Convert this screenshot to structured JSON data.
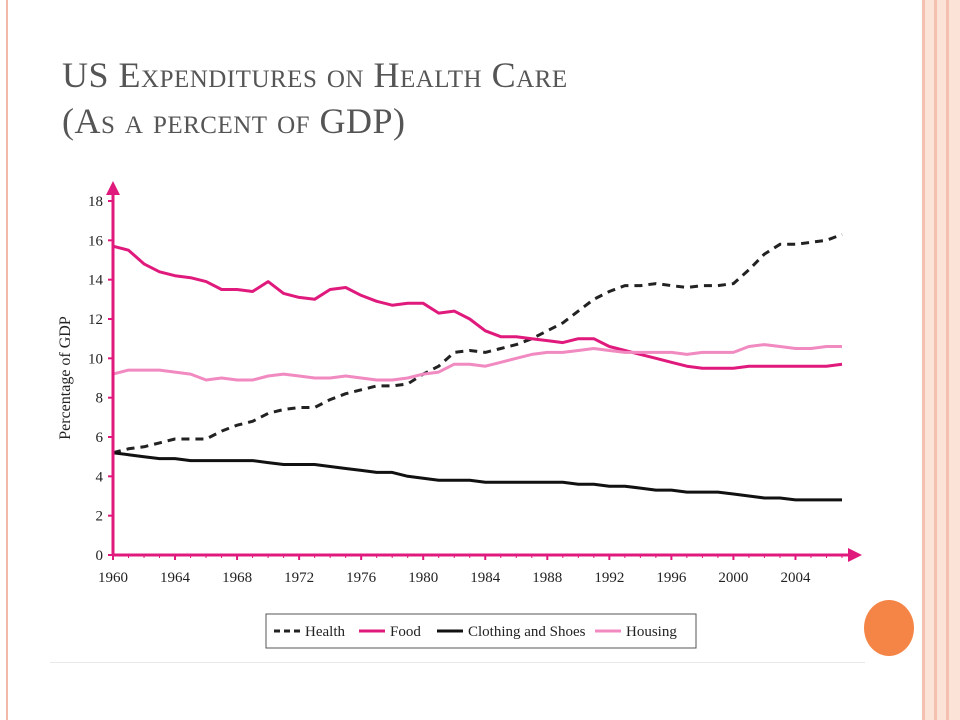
{
  "slide": {
    "title_line1": "US Expenditures on Health Care",
    "title_line2": "(As a percent of GDP)"
  },
  "colors": {
    "axis": "#e0197d",
    "health": "#222222",
    "food": "#e0197d",
    "clothing": "#111111",
    "housing": "#f08ac0",
    "title": "#555555",
    "accent_dot": "#f58546"
  },
  "chart_data": {
    "type": "line",
    "title": "",
    "xlabel": "",
    "ylabel": "Percentage of GDP",
    "xlim": [
      1960,
      2007
    ],
    "ylim": [
      0,
      18
    ],
    "xticks": [
      "1960",
      "1964",
      "1968",
      "1972",
      "1976",
      "1980",
      "1984",
      "1988",
      "1992",
      "1996",
      "2000",
      "2004"
    ],
    "yticks": [
      "0",
      "2",
      "4",
      "6",
      "8",
      "10",
      "12",
      "14",
      "16",
      "18"
    ],
    "legend_position": "bottom",
    "x": [
      1960,
      1961,
      1962,
      1963,
      1964,
      1965,
      1966,
      1967,
      1968,
      1969,
      1970,
      1971,
      1972,
      1973,
      1974,
      1975,
      1976,
      1977,
      1978,
      1979,
      1980,
      1981,
      1982,
      1983,
      1984,
      1985,
      1986,
      1987,
      1988,
      1989,
      1990,
      1991,
      1992,
      1993,
      1994,
      1995,
      1996,
      1997,
      1998,
      1999,
      2000,
      2001,
      2002,
      2003,
      2004,
      2005,
      2006,
      2007
    ],
    "series": [
      {
        "name": "Health",
        "style": "dashed",
        "values": [
          5.2,
          5.4,
          5.5,
          5.7,
          5.9,
          5.9,
          5.9,
          6.3,
          6.6,
          6.8,
          7.2,
          7.4,
          7.5,
          7.5,
          7.9,
          8.2,
          8.4,
          8.6,
          8.6,
          8.7,
          9.2,
          9.6,
          10.3,
          10.4,
          10.3,
          10.5,
          10.7,
          11.0,
          11.4,
          11.8,
          12.4,
          13.0,
          13.4,
          13.7,
          13.7,
          13.8,
          13.7,
          13.6,
          13.7,
          13.7,
          13.8,
          14.5,
          15.3,
          15.8,
          15.8,
          15.9,
          16.0,
          16.3
        ]
      },
      {
        "name": "Food",
        "style": "solid",
        "values": [
          15.7,
          15.5,
          14.8,
          14.4,
          14.2,
          14.1,
          13.9,
          13.5,
          13.5,
          13.4,
          13.9,
          13.3,
          13.1,
          13.0,
          13.5,
          13.6,
          13.2,
          12.9,
          12.7,
          12.8,
          12.8,
          12.3,
          12.4,
          12.0,
          11.4,
          11.1,
          11.1,
          11.0,
          10.9,
          10.8,
          11.0,
          11.0,
          10.6,
          10.4,
          10.2,
          10.0,
          9.8,
          9.6,
          9.5,
          9.5,
          9.5,
          9.6,
          9.6,
          9.6,
          9.6,
          9.6,
          9.6,
          9.7
        ]
      },
      {
        "name": "Clothing and Shoes",
        "style": "solid",
        "values": [
          5.2,
          5.1,
          5.0,
          4.9,
          4.9,
          4.8,
          4.8,
          4.8,
          4.8,
          4.8,
          4.7,
          4.6,
          4.6,
          4.6,
          4.5,
          4.4,
          4.3,
          4.2,
          4.2,
          4.0,
          3.9,
          3.8,
          3.8,
          3.8,
          3.7,
          3.7,
          3.7,
          3.7,
          3.7,
          3.7,
          3.6,
          3.6,
          3.5,
          3.5,
          3.4,
          3.3,
          3.3,
          3.2,
          3.2,
          3.2,
          3.1,
          3.0,
          2.9,
          2.9,
          2.8,
          2.8,
          2.8,
          2.8
        ]
      },
      {
        "name": "Housing",
        "style": "solid",
        "values": [
          9.2,
          9.4,
          9.4,
          9.4,
          9.3,
          9.2,
          8.9,
          9.0,
          8.9,
          8.9,
          9.1,
          9.2,
          9.1,
          9.0,
          9.0,
          9.1,
          9.0,
          8.9,
          8.9,
          9.0,
          9.2,
          9.3,
          9.7,
          9.7,
          9.6,
          9.8,
          10.0,
          10.2,
          10.3,
          10.3,
          10.4,
          10.5,
          10.4,
          10.3,
          10.3,
          10.3,
          10.3,
          10.2,
          10.3,
          10.3,
          10.3,
          10.6,
          10.7,
          10.6,
          10.5,
          10.5,
          10.6,
          10.6
        ]
      }
    ]
  }
}
